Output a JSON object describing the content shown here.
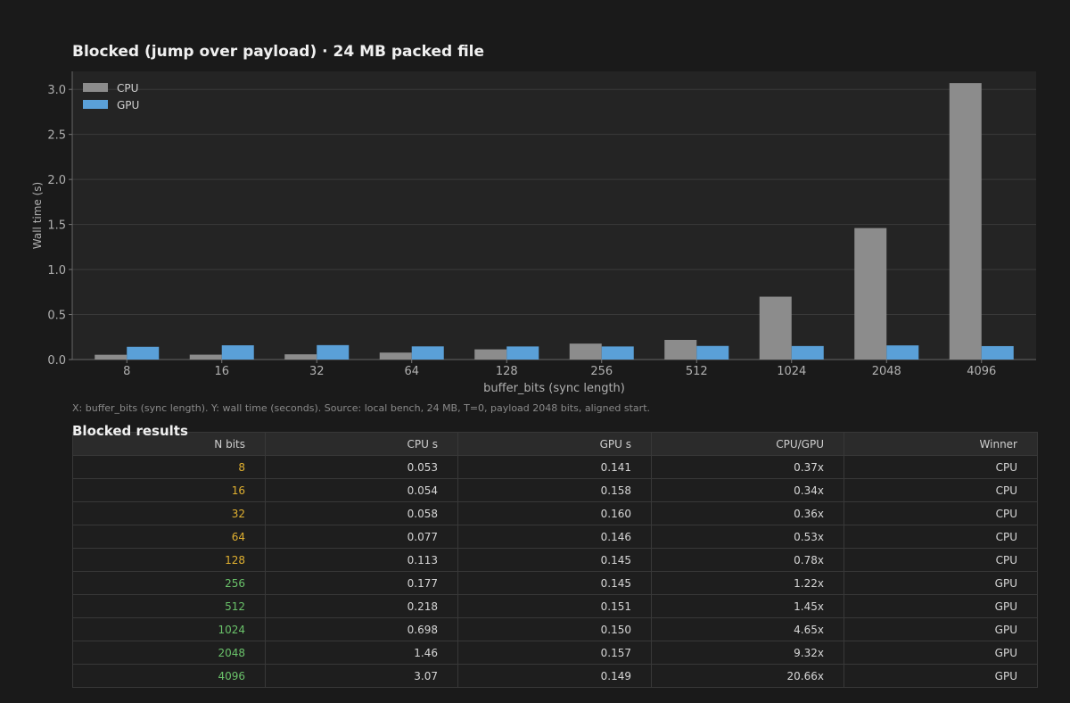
{
  "chart_data": {
    "type": "bar",
    "title": "Blocked (jump over payload)  ·  24 MB packed file",
    "xlabel": "buffer_bits (sync length)",
    "ylabel": "Wall time (s)",
    "categories": [
      "8",
      "16",
      "32",
      "64",
      "128",
      "256",
      "512",
      "1024",
      "2048",
      "4096"
    ],
    "series": [
      {
        "name": "CPU",
        "color": "#8c8c8c",
        "values": [
          0.053,
          0.054,
          0.058,
          0.077,
          0.113,
          0.177,
          0.218,
          0.698,
          1.46,
          3.07
        ]
      },
      {
        "name": "GPU",
        "color": "#5aa0d8",
        "values": [
          0.141,
          0.158,
          0.16,
          0.146,
          0.145,
          0.145,
          0.151,
          0.15,
          0.157,
          0.149
        ]
      }
    ],
    "ylim": [
      0,
      3.2
    ],
    "yticks": [
      "0.0",
      "0.5",
      "1.0",
      "1.5",
      "2.0",
      "2.5",
      "3.0"
    ],
    "grid": true,
    "legend": "top-left"
  },
  "caption": "X: buffer_bits (sync length). Y: wall time (seconds). Source: local bench, 24 MB, T=0, payload 2048 bits, aligned start.",
  "table": {
    "title": "Blocked results",
    "columns": [
      "N bits",
      "CPU s",
      "GPU s",
      "CPU/GPU",
      "Winner"
    ],
    "rows": [
      [
        "8",
        "0.053",
        "0.141",
        "0.37x",
        "CPU"
      ],
      [
        "16",
        "0.054",
        "0.158",
        "0.34x",
        "CPU"
      ],
      [
        "32",
        "0.058",
        "0.160",
        "0.36x",
        "CPU"
      ],
      [
        "64",
        "0.077",
        "0.146",
        "0.53x",
        "CPU"
      ],
      [
        "128",
        "0.113",
        "0.145",
        "0.78x",
        "CPU"
      ],
      [
        "256",
        "0.177",
        "0.145",
        "1.22x",
        "GPU"
      ],
      [
        "512",
        "0.218",
        "0.151",
        "1.45x",
        "GPU"
      ],
      [
        "1024",
        "0.698",
        "0.150",
        "4.65x",
        "GPU"
      ],
      [
        "2048",
        "1.46",
        "0.157",
        "9.32x",
        "GPU"
      ],
      [
        "4096",
        "3.07",
        "0.149",
        "20.66x",
        "GPU"
      ]
    ]
  },
  "colors": {
    "cpu_win": "#e0b030",
    "gpu_win": "#6ac26a"
  }
}
